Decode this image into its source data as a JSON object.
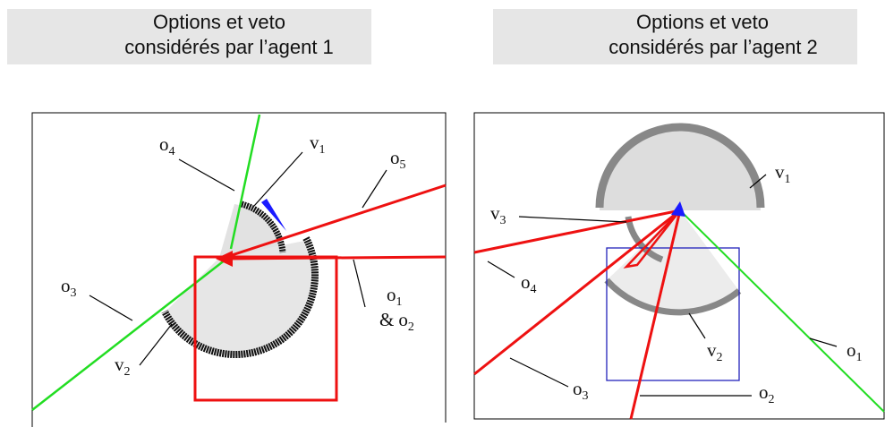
{
  "panels": [
    {
      "header": [
        "Options et veto",
        "considérés par l’agent 1"
      ],
      "labels": [
        {
          "letter": "o",
          "sub": "4"
        },
        {
          "letter": "v",
          "sub": "1"
        },
        {
          "letter": "o",
          "sub": "5"
        },
        {
          "letter": "o",
          "sub": "3"
        },
        {
          "letter": "o",
          "sub": "1"
        },
        {
          "prefix": "&",
          "letter": "o",
          "sub": "2"
        },
        {
          "letter": "v",
          "sub": "2"
        }
      ]
    },
    {
      "header": [
        "Options et veto",
        "considérés par l’agent 2"
      ],
      "labels": [
        {
          "letter": "v",
          "sub": "1"
        },
        {
          "letter": "v",
          "sub": "3"
        },
        {
          "letter": "o",
          "sub": "4"
        },
        {
          "letter": "v",
          "sub": "2"
        },
        {
          "letter": "o",
          "sub": "1"
        },
        {
          "letter": "o",
          "sub": "3"
        },
        {
          "letter": "o",
          "sub": "2"
        }
      ]
    }
  ]
}
